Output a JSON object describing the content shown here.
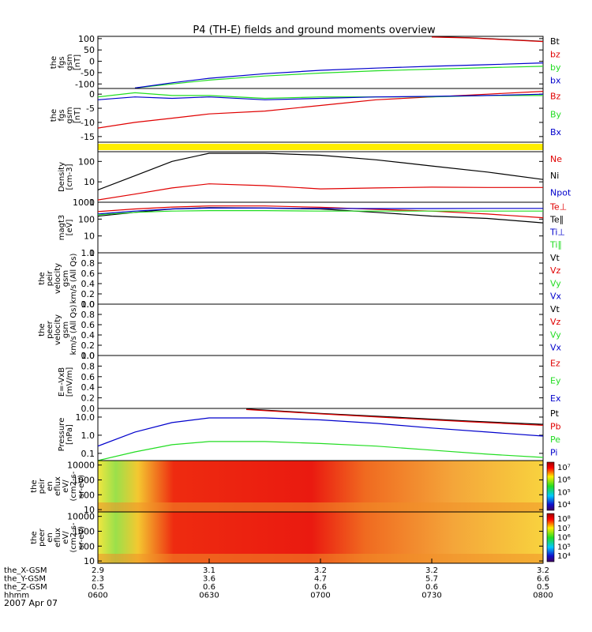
{
  "title": "P4 (TH-E) fields and ground moments overview",
  "date_label": "2007 Apr 07",
  "colors": {
    "black": "#000000",
    "red": "#e00000",
    "green": "#22dd22",
    "blue": "#0000cc",
    "yellow": "#ffee00"
  },
  "panels": [
    {
      "id": "fgs-gsm",
      "ylabel": [
        "the",
        "fgs",
        "gsm",
        "[nT]"
      ],
      "ylim": [
        -120,
        110
      ],
      "ticks": [
        "100",
        "50",
        "0",
        "-50",
        "-100"
      ],
      "tick_values": [
        100,
        50,
        0,
        -50,
        -100
      ],
      "legend": [
        {
          "label": "Bt",
          "color": "#000000"
        },
        {
          "label": "bz",
          "color": "#e00000"
        },
        {
          "label": "by",
          "color": "#22dd22"
        },
        {
          "label": "bx",
          "color": "#0000cc"
        }
      ]
    },
    {
      "id": "fgs-dsl",
      "ylabel": [
        "the",
        "fgs",
        "gsm",
        "[nT]"
      ],
      "ylim": [
        -17,
        2
      ],
      "ticks": [
        "0",
        "-5",
        "-10",
        "-15"
      ],
      "tick_values": [
        0,
        -5,
        -10,
        -15
      ],
      "legend": [
        {
          "label": "Bz",
          "color": "#e00000"
        },
        {
          "label": "By",
          "color": "#22dd22"
        },
        {
          "label": "Bx",
          "color": "#0000cc"
        }
      ]
    },
    {
      "id": "density",
      "ylabel": [
        "Density",
        "[cm-3]"
      ],
      "log": true,
      "ylim": [
        1,
        300
      ],
      "ticks": [
        "100",
        "10",
        "1"
      ],
      "tick_values": [
        100,
        10,
        1
      ],
      "legend": [
        {
          "label": "Ne",
          "color": "#e00000"
        },
        {
          "label": "Ni",
          "color": "#000000"
        },
        {
          "label": "Npot",
          "color": "#0000cc"
        }
      ]
    },
    {
      "id": "temperature",
      "ylabel": [
        "magt3",
        "[eV]"
      ],
      "log": true,
      "ylim": [
        1,
        1000
      ],
      "ticks": [
        "1000",
        "100",
        "10",
        "1"
      ],
      "tick_values": [
        1000,
        100,
        10,
        1
      ],
      "legend": [
        {
          "label": "Te⊥",
          "color": "#e00000"
        },
        {
          "label": "Te∥",
          "color": "#000000"
        },
        {
          "label": "Ti⊥",
          "color": "#0000cc"
        },
        {
          "label": "Ti∥",
          "color": "#22dd22"
        }
      ]
    },
    {
      "id": "peir-velocity",
      "ylabel": [
        "the",
        "peir",
        "velocity",
        "gsm",
        "km/s (All Qs)"
      ],
      "ylim": [
        0,
        1
      ],
      "ticks": [
        "1.0",
        "0.8",
        "0.6",
        "0.4",
        "0.2",
        "0.0"
      ],
      "tick_values": [
        1,
        0.8,
        0.6,
        0.4,
        0.2,
        0
      ],
      "legend": [
        {
          "label": "Vt",
          "color": "#000000"
        },
        {
          "label": "Vz",
          "color": "#e00000"
        },
        {
          "label": "Vy",
          "color": "#22dd22"
        },
        {
          "label": "Vx",
          "color": "#0000cc"
        }
      ]
    },
    {
      "id": "peer-velocity",
      "ylabel": [
        "the",
        "peer",
        "velocity",
        "gsm",
        "km/s (All Qs)"
      ],
      "ylim": [
        0,
        1
      ],
      "ticks": [
        "1.0",
        "0.8",
        "0.6",
        "0.4",
        "0.2",
        "0.0"
      ],
      "tick_values": [
        1,
        0.8,
        0.6,
        0.4,
        0.2,
        0
      ],
      "legend": [
        {
          "label": "Vt",
          "color": "#000000"
        },
        {
          "label": "Vz",
          "color": "#e00000"
        },
        {
          "label": "Vy",
          "color": "#22dd22"
        },
        {
          "label": "Vx",
          "color": "#0000cc"
        }
      ]
    },
    {
      "id": "efield",
      "ylabel": [
        "E=-VxB",
        "[mV/m]"
      ],
      "ylim": [
        0,
        1
      ],
      "ticks": [
        "1.0",
        "0.8",
        "0.6",
        "0.4",
        "0.2",
        "0.0"
      ],
      "tick_values": [
        1,
        0.8,
        0.6,
        0.4,
        0.2,
        0
      ],
      "legend": [
        {
          "label": "Ez",
          "color": "#e00000"
        },
        {
          "label": "Ey",
          "color": "#22dd22"
        },
        {
          "label": "Ex",
          "color": "#0000cc"
        }
      ]
    },
    {
      "id": "pressure",
      "ylabel": [
        "Pressure",
        "[nPa]"
      ],
      "log": true,
      "ylim": [
        0.04,
        30
      ],
      "ticks": [
        "10.0",
        "1.0",
        "0.1"
      ],
      "tick_values": [
        10,
        1,
        0.1
      ],
      "legend": [
        {
          "label": "Pt",
          "color": "#000000"
        },
        {
          "label": "Pb",
          "color": "#e00000"
        },
        {
          "label": "Pe",
          "color": "#22dd22"
        },
        {
          "label": "Pi",
          "color": "#0000cc"
        }
      ]
    },
    {
      "id": "peir-spec",
      "ylabel": [
        "the",
        "peir",
        "en",
        "eflux",
        "eV/",
        "(cm2-s-",
        "sr-eV)"
      ],
      "log": true,
      "ylim": [
        7,
        20000
      ],
      "ticks": [
        "10000",
        "1000",
        "100",
        "10"
      ],
      "tick_values": [
        10000,
        1000,
        100,
        10
      ],
      "colorbar": [
        "10⁷",
        "10⁶",
        "10⁵",
        "10⁴"
      ]
    },
    {
      "id": "peer-spec",
      "ylabel": [
        "the",
        "peer",
        "en",
        "eflux",
        "eV/",
        "(cm2-s-",
        "sr-eV)"
      ],
      "log": true,
      "ylim": [
        7,
        20000
      ],
      "ticks": [
        "10000",
        "1000",
        "100",
        "10"
      ],
      "tick_values": [
        10000,
        1000,
        100,
        10
      ],
      "colorbar": [
        "10⁸",
        "10⁷",
        "10⁶",
        "10⁵",
        "10⁴"
      ]
    }
  ],
  "xaxis": {
    "rows": [
      {
        "label": "the_X-GSM",
        "values": [
          "2.9",
          "3.1",
          "3.2",
          "3.2",
          "3.2"
        ]
      },
      {
        "label": "the_Y-GSM",
        "values": [
          "2.3",
          "3.6",
          "4.7",
          "5.7",
          "6.6"
        ]
      },
      {
        "label": "the_Z-GSM",
        "values": [
          "0.5",
          "0.6",
          "0.6",
          "0.6",
          "0.5"
        ]
      },
      {
        "label": "hhmm",
        "values": [
          "0600",
          "0630",
          "0700",
          "0730",
          "0800"
        ]
      }
    ],
    "tick_times_min": [
      0,
      30,
      60,
      90,
      120
    ]
  },
  "chart_data": [
    {
      "type": "line",
      "title": "P4 (TH-E) fields and ground moments overview",
      "panel": "fgs-gsm",
      "x_unit": "minutes since 0600",
      "ylim": [
        -120,
        110
      ],
      "series": [
        {
          "name": "Bt",
          "color": "#000000",
          "x": [
            90,
            100,
            110,
            120
          ],
          "y": [
            108,
            104,
            96,
            88
          ]
        },
        {
          "name": "bz",
          "color": "#e00000",
          "x": [
            90,
            100,
            110,
            120
          ],
          "y": [
            107,
            103,
            95,
            87
          ]
        },
        {
          "name": "by",
          "color": "#22dd22",
          "x": [
            10,
            20,
            30,
            45,
            60,
            75,
            90,
            105,
            120
          ],
          "y": [
            -118,
            -100,
            -83,
            -65,
            -52,
            -42,
            -35,
            -28,
            -22
          ]
        },
        {
          "name": "bx",
          "color": "#0000cc",
          "x": [
            10,
            20,
            30,
            45,
            60,
            75,
            90,
            105,
            120
          ],
          "y": [
            -118,
            -95,
            -75,
            -55,
            -40,
            -30,
            -22,
            -15,
            -7
          ]
        }
      ]
    },
    {
      "type": "line",
      "panel": "fgs-dsl",
      "x_unit": "minutes since 0600",
      "ylim": [
        -17,
        2
      ],
      "series": [
        {
          "name": "Bz",
          "color": "#e00000",
          "x": [
            0,
            10,
            20,
            30,
            45,
            60,
            75,
            90,
            105,
            120
          ],
          "y": [
            -12,
            -10,
            -8.5,
            -7,
            -6,
            -4,
            -2,
            -1,
            0,
            1
          ]
        },
        {
          "name": "By",
          "color": "#22dd22",
          "x": [
            0,
            10,
            20,
            30,
            45,
            60,
            75,
            90,
            105,
            120
          ],
          "y": [
            -1,
            0.5,
            -0.5,
            -0.5,
            -1.5,
            -1,
            -1,
            -1,
            -0.5,
            -0.5
          ]
        },
        {
          "name": "Bx",
          "color": "#0000cc",
          "x": [
            0,
            10,
            20,
            30,
            45,
            60,
            75,
            90,
            105,
            120
          ],
          "y": [
            -2,
            -1,
            -1.5,
            -1,
            -2,
            -1.5,
            -1,
            -0.8,
            -0.5,
            0
          ]
        }
      ]
    },
    {
      "type": "line",
      "panel": "density",
      "x_unit": "minutes since 0600",
      "ylim": [
        1,
        300
      ],
      "log": true,
      "series": [
        {
          "name": "Ni",
          "color": "#000000",
          "x": [
            0,
            10,
            20,
            30,
            45,
            60,
            75,
            90,
            105,
            120
          ],
          "y": [
            4,
            20,
            100,
            250,
            250,
            200,
            120,
            60,
            30,
            13
          ]
        },
        {
          "name": "Ne",
          "color": "#e00000",
          "x": [
            0,
            10,
            20,
            30,
            45,
            60,
            75,
            90,
            105,
            120
          ],
          "y": [
            1.3,
            2.5,
            5,
            8,
            6.5,
            4.5,
            5,
            5.5,
            5.3,
            5.3
          ]
        }
      ]
    },
    {
      "type": "line",
      "panel": "temperature",
      "x_unit": "minutes since 0600",
      "ylim": [
        1,
        1000
      ],
      "log": true,
      "series": [
        {
          "name": "Te⊥",
          "color": "#e00000",
          "x": [
            0,
            10,
            20,
            30,
            45,
            60,
            75,
            90,
            105,
            120
          ],
          "y": [
            280,
            400,
            520,
            600,
            600,
            500,
            380,
            300,
            200,
            120
          ]
        },
        {
          "name": "Te∥",
          "color": "#000000",
          "x": [
            0,
            10,
            20,
            30,
            45,
            60,
            75,
            90,
            105,
            120
          ],
          "y": [
            150,
            250,
            400,
            480,
            450,
            400,
            250,
            150,
            110,
            60
          ]
        },
        {
          "name": "Ti⊥",
          "color": "#0000cc",
          "x": [
            0,
            10,
            20,
            30,
            45,
            60,
            75,
            90,
            105,
            120
          ],
          "y": [
            200,
            300,
            400,
            450,
            450,
            430,
            420,
            420,
            430,
            430
          ]
        },
        {
          "name": "Ti∥",
          "color": "#22dd22",
          "x": [
            0,
            10,
            20,
            30,
            45,
            60,
            75,
            90,
            105,
            120
          ],
          "y": [
            180,
            250,
            300,
            320,
            320,
            300,
            300,
            300,
            300,
            300
          ]
        }
      ]
    },
    {
      "type": "line",
      "panel": "pressure",
      "x_unit": "minutes since 0600",
      "ylim": [
        0.04,
        30
      ],
      "log": true,
      "series": [
        {
          "name": "Pt",
          "color": "#000000",
          "x": [
            40,
            60,
            80,
            100,
            120
          ],
          "y": [
            28,
            16,
            10,
            6,
            4
          ]
        },
        {
          "name": "Pb",
          "color": "#e00000",
          "x": [
            40,
            60,
            80,
            100,
            120
          ],
          "y": [
            26,
            15,
            9,
            5.5,
            3.5
          ]
        },
        {
          "name": "Pe",
          "color": "#22dd22",
          "x": [
            0,
            10,
            20,
            30,
            45,
            60,
            75,
            90,
            105,
            120
          ],
          "y": [
            0.04,
            0.12,
            0.3,
            0.45,
            0.45,
            0.35,
            0.25,
            0.15,
            0.09,
            0.06
          ]
        },
        {
          "name": "Pi",
          "color": "#0000cc",
          "x": [
            0,
            10,
            20,
            30,
            45,
            60,
            75,
            90,
            105,
            120
          ],
          "y": [
            0.25,
            1.5,
            5,
            9,
            9,
            7,
            4.5,
            2.5,
            1.5,
            0.9
          ]
        }
      ]
    }
  ]
}
